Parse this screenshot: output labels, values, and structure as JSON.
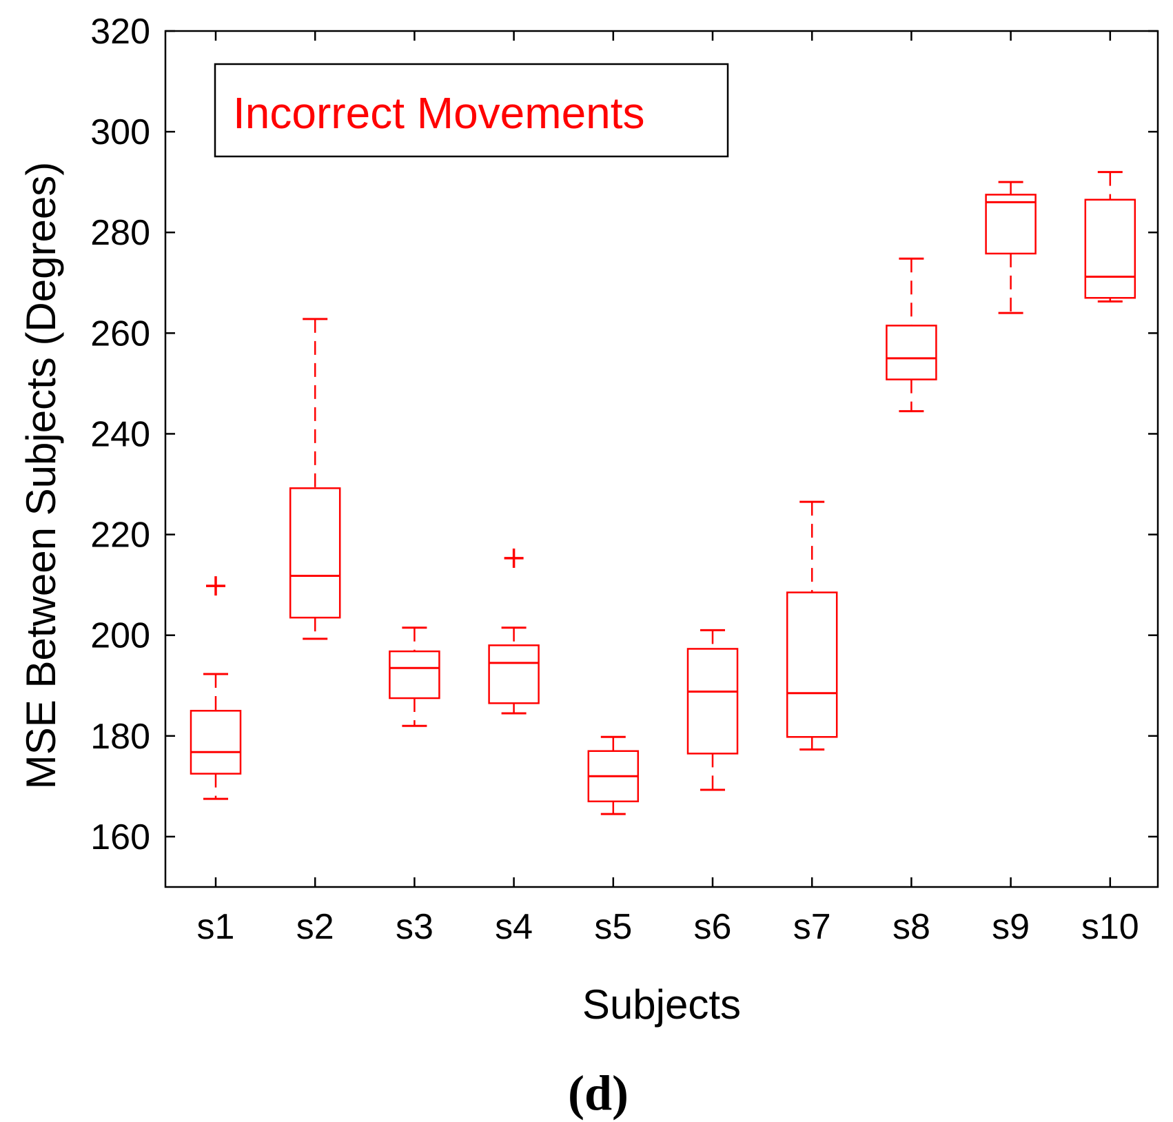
{
  "chart_data": {
    "type": "boxplot",
    "xlabel": "Subjects",
    "ylabel": "MSE Between Subjects (Degrees)",
    "legend_text": "Incorrect Movements",
    "legend_position": "top-left",
    "panel_label": "(d)",
    "ylim": [
      150,
      320
    ],
    "yticks": [
      160,
      180,
      200,
      220,
      240,
      260,
      280,
      300,
      320
    ],
    "categories": [
      "s1",
      "s2",
      "s3",
      "s4",
      "s5",
      "s6",
      "s7",
      "s8",
      "s9",
      "s10"
    ],
    "boxes": [
      {
        "min": 167.5,
        "q1": 172.5,
        "median": 176.8,
        "q3": 185,
        "max": 192.3,
        "outliers": [
          209.8
        ]
      },
      {
        "min": 199.3,
        "q1": 203.5,
        "median": 211.8,
        "q3": 229.2,
        "max": 262.8,
        "outliers": []
      },
      {
        "min": 182,
        "q1": 187.5,
        "median": 193.5,
        "q3": 196.8,
        "max": 201.5,
        "outliers": []
      },
      {
        "min": 184.5,
        "q1": 186.5,
        "median": 194.5,
        "q3": 198,
        "max": 201.5,
        "outliers": [
          215.3
        ]
      },
      {
        "min": 164.5,
        "q1": 167,
        "median": 172,
        "q3": 177,
        "max": 179.8,
        "outliers": []
      },
      {
        "min": 169.3,
        "q1": 176.5,
        "median": 188.8,
        "q3": 197.3,
        "max": 201,
        "outliers": []
      },
      {
        "min": 177.3,
        "q1": 179.8,
        "median": 188.5,
        "q3": 208.5,
        "max": 226.5,
        "outliers": []
      },
      {
        "min": 244.5,
        "q1": 250.8,
        "median": 255,
        "q3": 261.5,
        "max": 274.8,
        "outliers": []
      },
      {
        "min": 264,
        "q1": 275.8,
        "median": 286,
        "q3": 287.5,
        "max": 290,
        "outliers": []
      },
      {
        "min": 266.3,
        "q1": 267,
        "median": 271.2,
        "q3": 286.5,
        "max": 292,
        "outliers": []
      }
    ],
    "colors": {
      "box": "#ff0000",
      "axis": "#000000",
      "legend_text": "#ff0000"
    }
  }
}
